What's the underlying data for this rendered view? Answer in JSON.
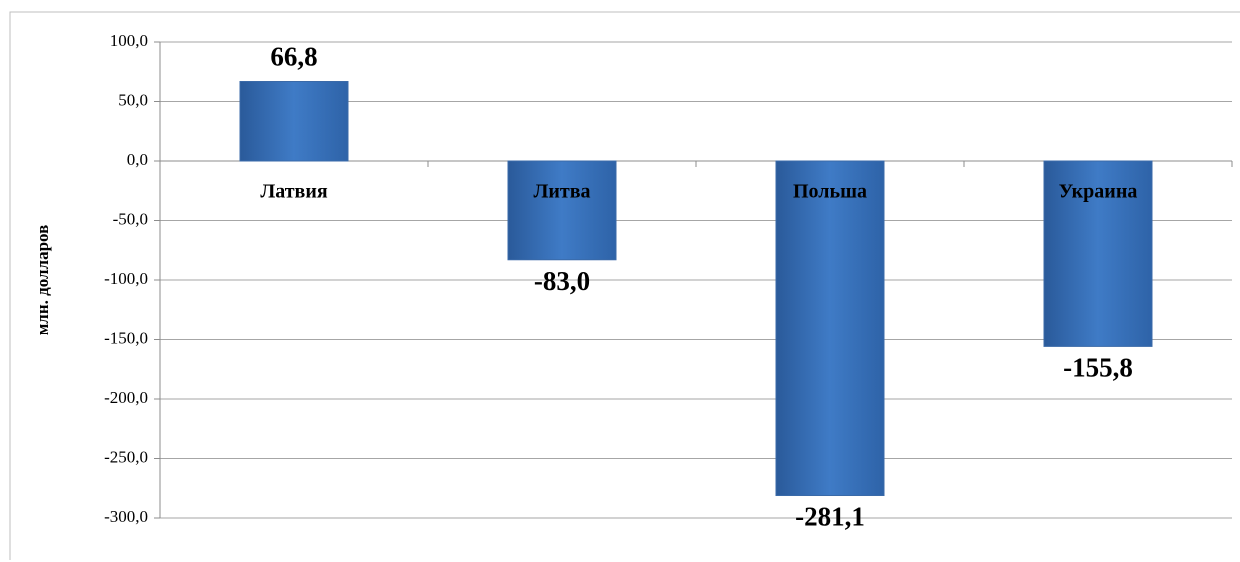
{
  "chart_data": {
    "type": "bar",
    "y_label": "млн. долларов",
    "categories": [
      "Латвия",
      "Литва",
      "Польша",
      "Украина"
    ],
    "values": [
      66.8,
      -83.0,
      -281.1,
      -155.8
    ],
    "value_labels": [
      "66,8",
      "-83,0",
      "-281,1",
      "-155,8"
    ],
    "color": "#3f7bc6",
    "ylim": [
      -300,
      100
    ],
    "yticks": [
      {
        "value": -300,
        "label": "-300,0"
      },
      {
        "value": -250,
        "label": "-250,0"
      },
      {
        "value": -200,
        "label": "-200,0"
      },
      {
        "value": -150,
        "label": "-150,0"
      },
      {
        "value": -100,
        "label": "-100,0"
      },
      {
        "value": -50,
        "label": "-50,0"
      },
      {
        "value": 0,
        "label": "0,0"
      },
      {
        "value": 50,
        "label": "50,0"
      },
      {
        "value": 100,
        "label": "100,0"
      }
    ],
    "grid": true
  }
}
